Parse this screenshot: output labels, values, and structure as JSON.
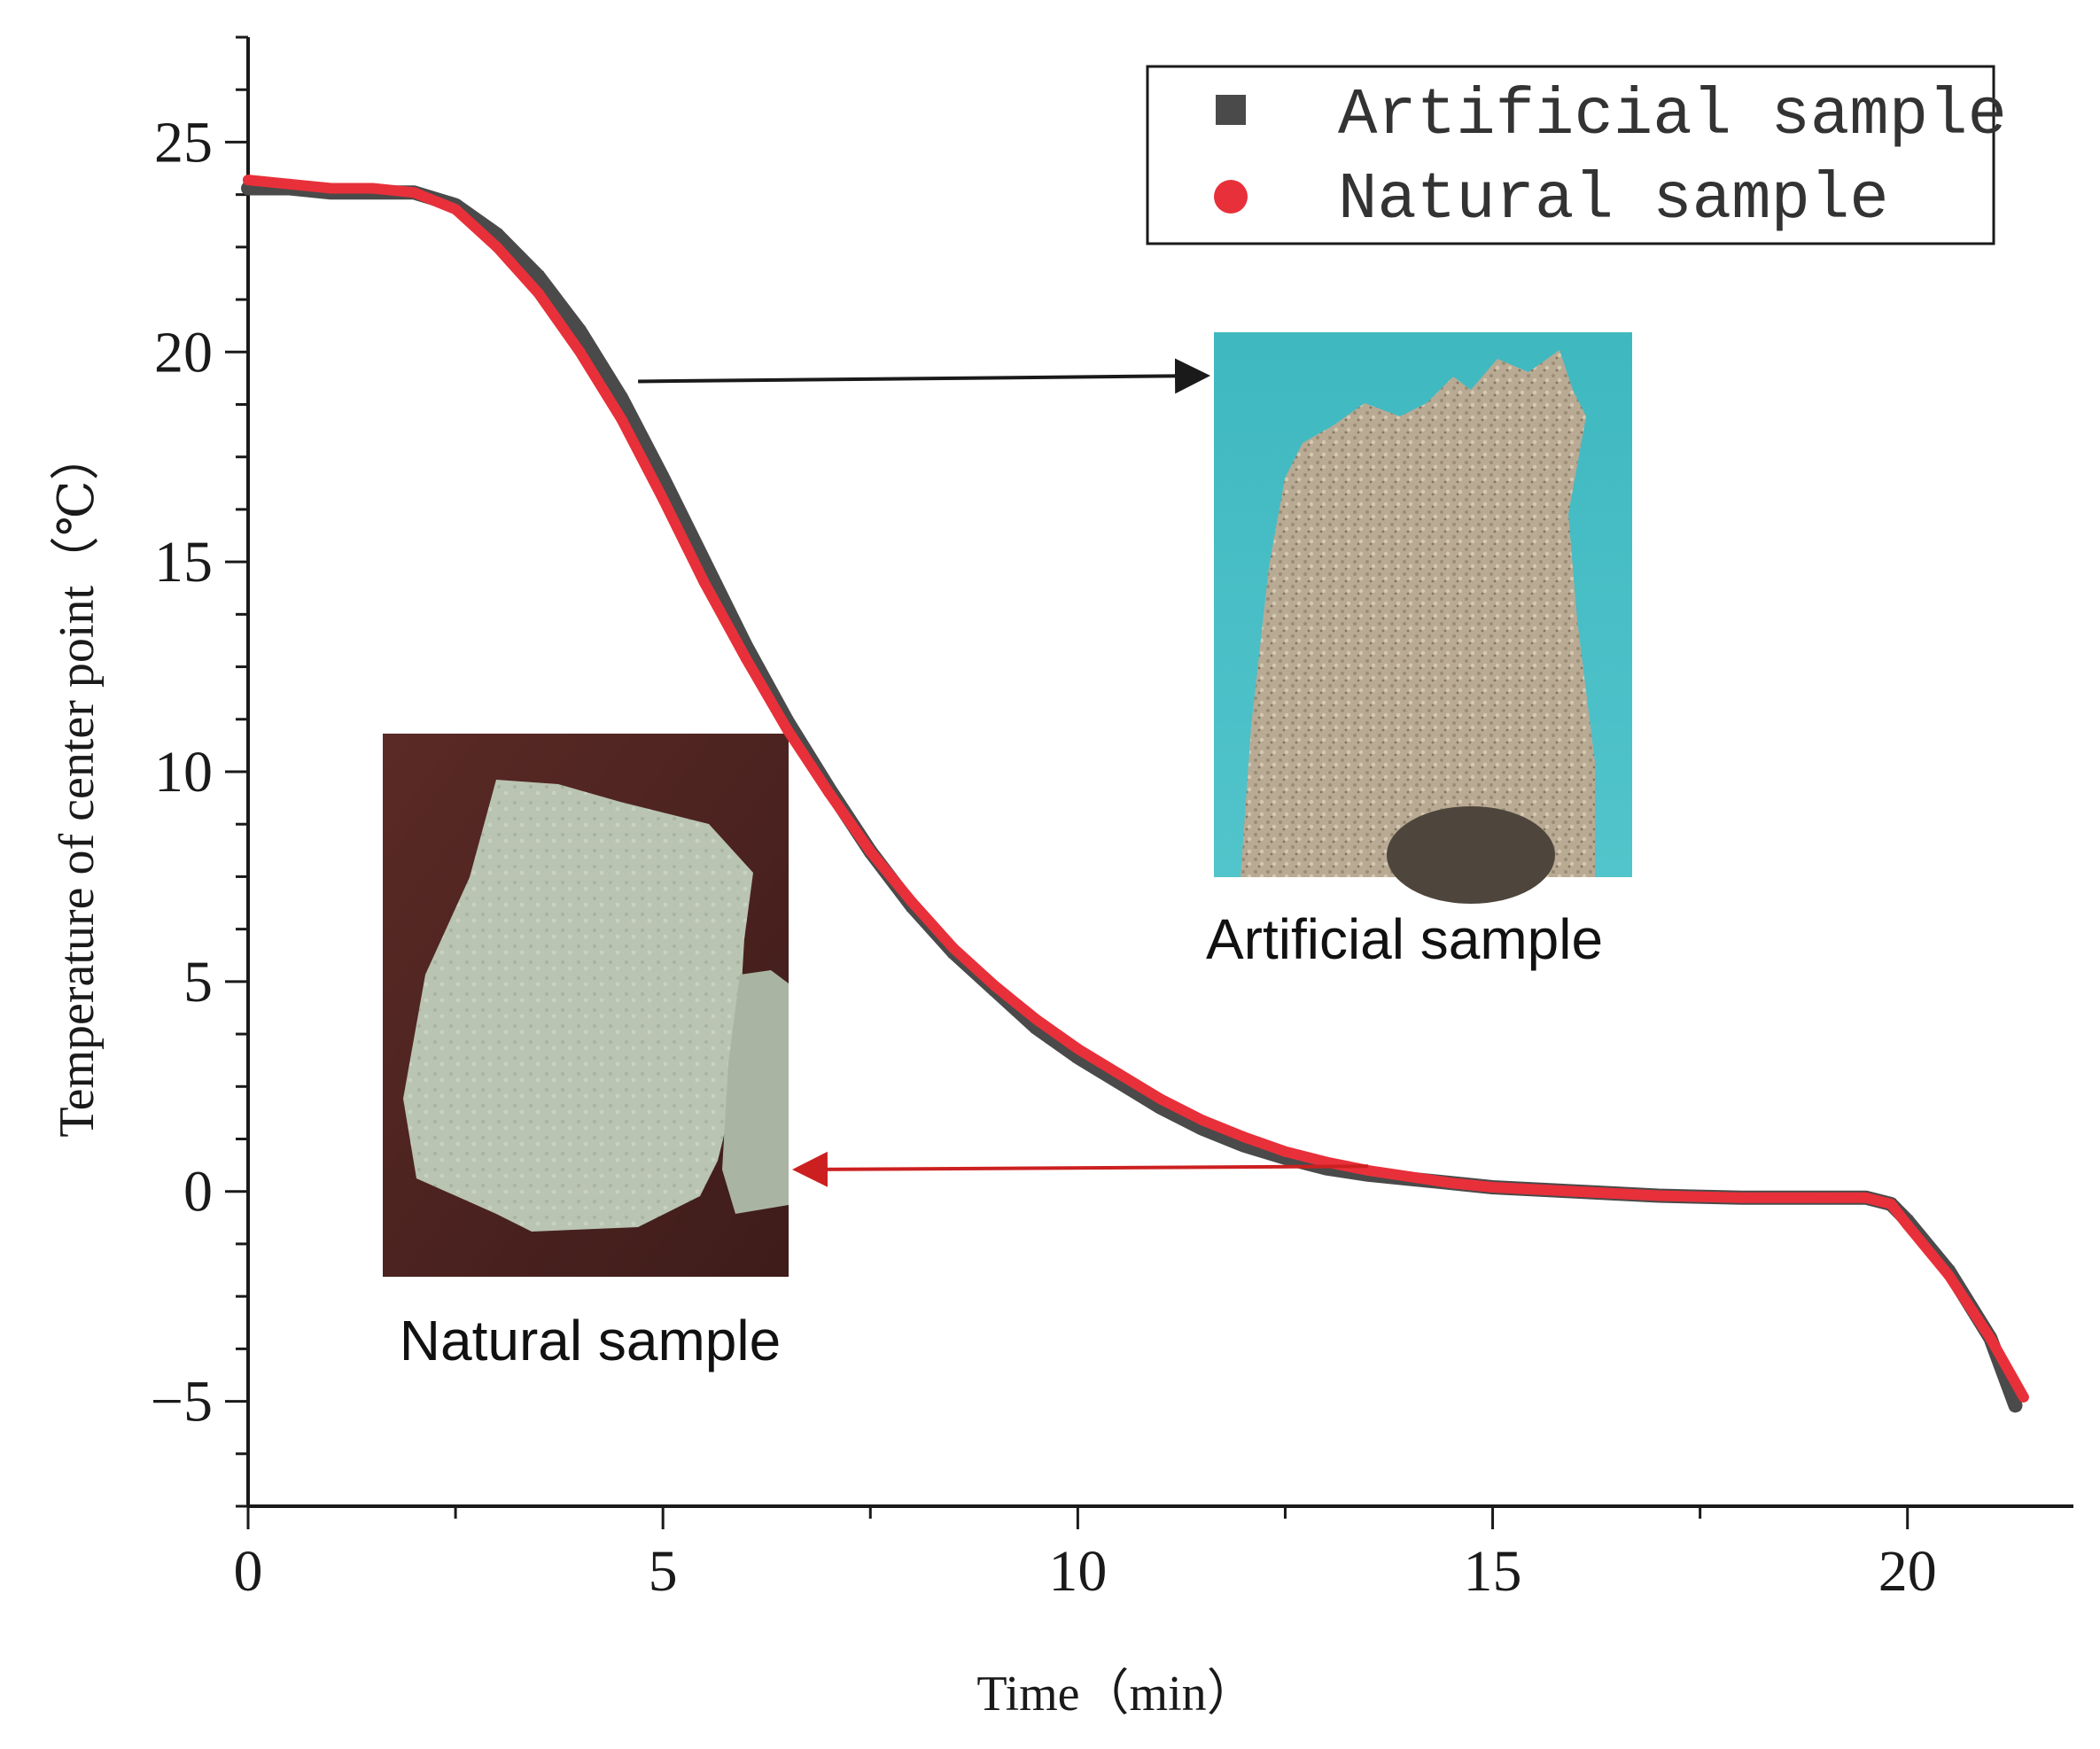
{
  "chart_data": {
    "type": "line",
    "xlabel": "Time（min）",
    "ylabel": "Temperature of center point（℃）",
    "xlim": [
      0,
      22
    ],
    "ylim": [
      -7.5,
      27.5
    ],
    "xticks": [
      0,
      5,
      10,
      15,
      20
    ],
    "yticks": [
      -5,
      0,
      5,
      10,
      15,
      20,
      25
    ],
    "legend_position": "top-right",
    "series": [
      {
        "name": "Artificial sample",
        "color": "#4a4a4a",
        "marker": "square",
        "x": [
          0,
          0.5,
          1,
          1.5,
          2,
          2.5,
          3,
          3.5,
          4,
          4.5,
          5,
          5.5,
          6,
          6.5,
          7,
          7.5,
          8,
          8.5,
          9,
          9.5,
          10,
          10.5,
          11,
          11.5,
          12,
          12.5,
          13,
          13.5,
          14,
          14.5,
          15,
          16,
          17,
          18,
          19,
          19.5,
          19.8,
          20,
          20.5,
          21,
          21.3
        ],
        "y": [
          23.9,
          23.9,
          23.8,
          23.8,
          23.8,
          23.5,
          22.8,
          21.8,
          20.5,
          18.9,
          17.0,
          15.0,
          13.0,
          11.2,
          9.6,
          8.1,
          6.8,
          5.7,
          4.8,
          3.9,
          3.2,
          2.6,
          2.0,
          1.5,
          1.1,
          0.8,
          0.55,
          0.4,
          0.3,
          0.2,
          0.1,
          0.0,
          -0.1,
          -0.15,
          -0.15,
          -0.15,
          -0.3,
          -0.7,
          -1.9,
          -3.5,
          -5.1
        ]
      },
      {
        "name": "Natural sample",
        "color": "#e8303a",
        "marker": "circle",
        "x": [
          0,
          0.5,
          1,
          1.5,
          2,
          2.5,
          3,
          3.5,
          4,
          4.5,
          5,
          5.5,
          6,
          6.5,
          7,
          7.5,
          8,
          8.5,
          9,
          9.5,
          10,
          10.5,
          11,
          11.5,
          12,
          12.5,
          13,
          13.5,
          14,
          14.5,
          15,
          16,
          17,
          18,
          19,
          19.5,
          19.8,
          20,
          20.5,
          21,
          21.4
        ],
        "y": [
          24.1,
          24.0,
          23.9,
          23.9,
          23.8,
          23.4,
          22.5,
          21.4,
          20.0,
          18.4,
          16.5,
          14.5,
          12.7,
          11.0,
          9.5,
          8.1,
          6.9,
          5.8,
          4.9,
          4.1,
          3.4,
          2.8,
          2.2,
          1.7,
          1.3,
          0.95,
          0.7,
          0.5,
          0.35,
          0.2,
          0.1,
          0.0,
          -0.1,
          -0.15,
          -0.15,
          -0.15,
          -0.3,
          -0.8,
          -2.0,
          -3.5,
          -4.9
        ]
      }
    ],
    "annotations": [
      {
        "label": "Artificial sample",
        "color": "#111111",
        "arrow_color": "#1a1a1a",
        "points_to": {
          "x": 4.7,
          "y": 19.3
        }
      },
      {
        "label": "Natural sample",
        "color": "#111111",
        "arrow_color": "#cc2020",
        "points_to": {
          "x": 13.5,
          "y": 0.6
        }
      }
    ]
  }
}
